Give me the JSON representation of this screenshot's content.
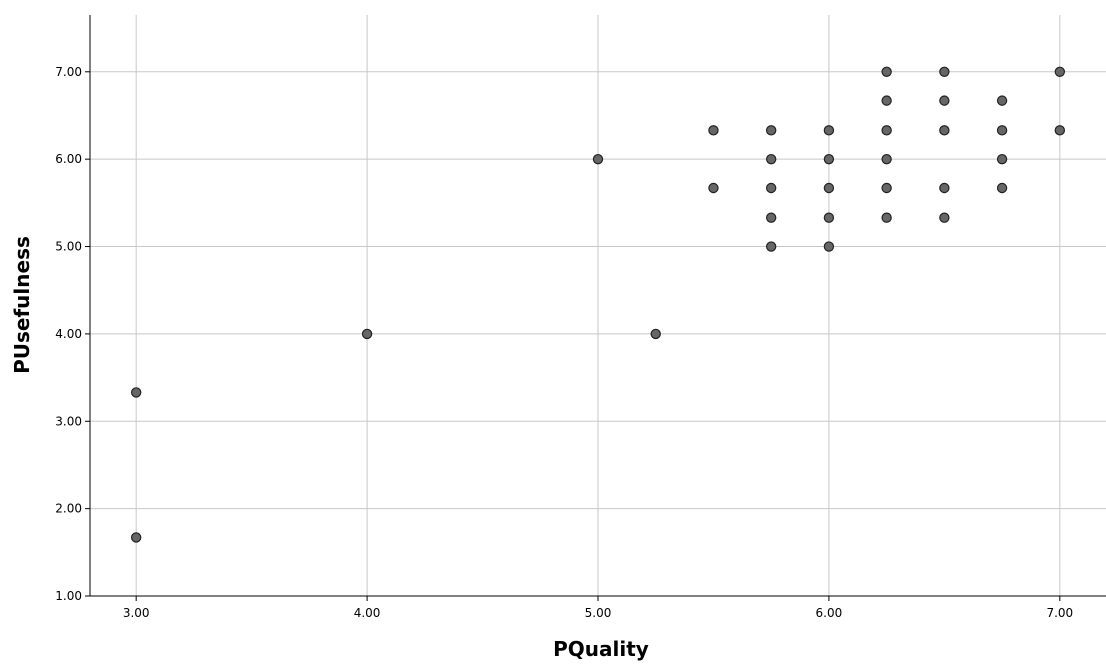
{
  "chart_data": {
    "type": "scatter",
    "title": "",
    "xlabel": "PQuality",
    "ylabel": "PUsefulness",
    "xlim": [
      2.8,
      7.2
    ],
    "ylim": [
      1.0,
      7.65
    ],
    "x_ticks": [
      {
        "value": 3.0,
        "label": "3.00"
      },
      {
        "value": 4.0,
        "label": "4.00"
      },
      {
        "value": 5.0,
        "label": "5.00"
      },
      {
        "value": 6.0,
        "label": "6.00"
      },
      {
        "value": 7.0,
        "label": "7.00"
      }
    ],
    "y_ticks": [
      {
        "value": 1.0,
        "label": "1.00"
      },
      {
        "value": 2.0,
        "label": "2.00"
      },
      {
        "value": 3.0,
        "label": "3.00"
      },
      {
        "value": 4.0,
        "label": "4.00"
      },
      {
        "value": 5.0,
        "label": "5.00"
      },
      {
        "value": 6.0,
        "label": "6.00"
      },
      {
        "value": 7.0,
        "label": "7.00"
      }
    ],
    "grid": true,
    "marker_color": "#666666",
    "points": [
      {
        "x": 3.0,
        "y": 3.33
      },
      {
        "x": 3.0,
        "y": 1.67
      },
      {
        "x": 4.0,
        "y": 4.0
      },
      {
        "x": 5.0,
        "y": 6.0
      },
      {
        "x": 5.25,
        "y": 4.0
      },
      {
        "x": 5.5,
        "y": 6.33
      },
      {
        "x": 5.5,
        "y": 5.67
      },
      {
        "x": 5.75,
        "y": 6.33
      },
      {
        "x": 5.75,
        "y": 6.0
      },
      {
        "x": 5.75,
        "y": 5.67
      },
      {
        "x": 5.75,
        "y": 5.33
      },
      {
        "x": 5.75,
        "y": 5.0
      },
      {
        "x": 6.0,
        "y": 6.33
      },
      {
        "x": 6.0,
        "y": 6.0
      },
      {
        "x": 6.0,
        "y": 5.67
      },
      {
        "x": 6.0,
        "y": 5.33
      },
      {
        "x": 6.0,
        "y": 5.0
      },
      {
        "x": 6.25,
        "y": 7.0
      },
      {
        "x": 6.25,
        "y": 6.67
      },
      {
        "x": 6.25,
        "y": 6.33
      },
      {
        "x": 6.25,
        "y": 6.0
      },
      {
        "x": 6.25,
        "y": 5.67
      },
      {
        "x": 6.25,
        "y": 5.33
      },
      {
        "x": 6.5,
        "y": 7.0
      },
      {
        "x": 6.5,
        "y": 6.67
      },
      {
        "x": 6.5,
        "y": 6.33
      },
      {
        "x": 6.5,
        "y": 5.67
      },
      {
        "x": 6.5,
        "y": 5.33
      },
      {
        "x": 6.75,
        "y": 6.67
      },
      {
        "x": 6.75,
        "y": 6.33
      },
      {
        "x": 6.75,
        "y": 6.0
      },
      {
        "x": 6.75,
        "y": 5.67
      },
      {
        "x": 7.0,
        "y": 7.0
      },
      {
        "x": 7.0,
        "y": 6.33
      }
    ]
  }
}
